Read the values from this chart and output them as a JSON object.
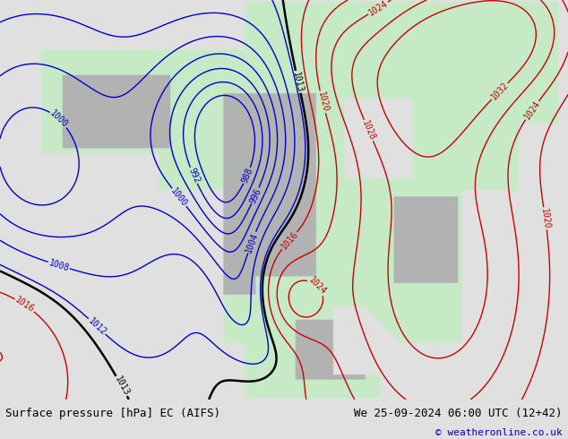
{
  "title_left": "Surface pressure [hPa] EC (AIFS)",
  "title_right": "We 25-09-2024 06:00 UTC (12+42)",
  "copyright": "© weatheronline.co.uk",
  "bg_color": "#e0e0e0",
  "land_color_r": 0.78,
  "land_color_g": 0.92,
  "land_color_b": 0.78,
  "mountain_color_r": 0.7,
  "mountain_color_g": 0.7,
  "mountain_color_b": 0.7,
  "ocean_color_r": 0.88,
  "ocean_color_g": 0.88,
  "ocean_color_b": 0.88,
  "contour_color_low": "#0000cc",
  "contour_color_high": "#cc0000",
  "contour_color_1013": "#000000",
  "label_fontsize": 7,
  "footer_fontsize": 9,
  "fig_width": 6.34,
  "fig_height": 4.9,
  "dpi": 100
}
